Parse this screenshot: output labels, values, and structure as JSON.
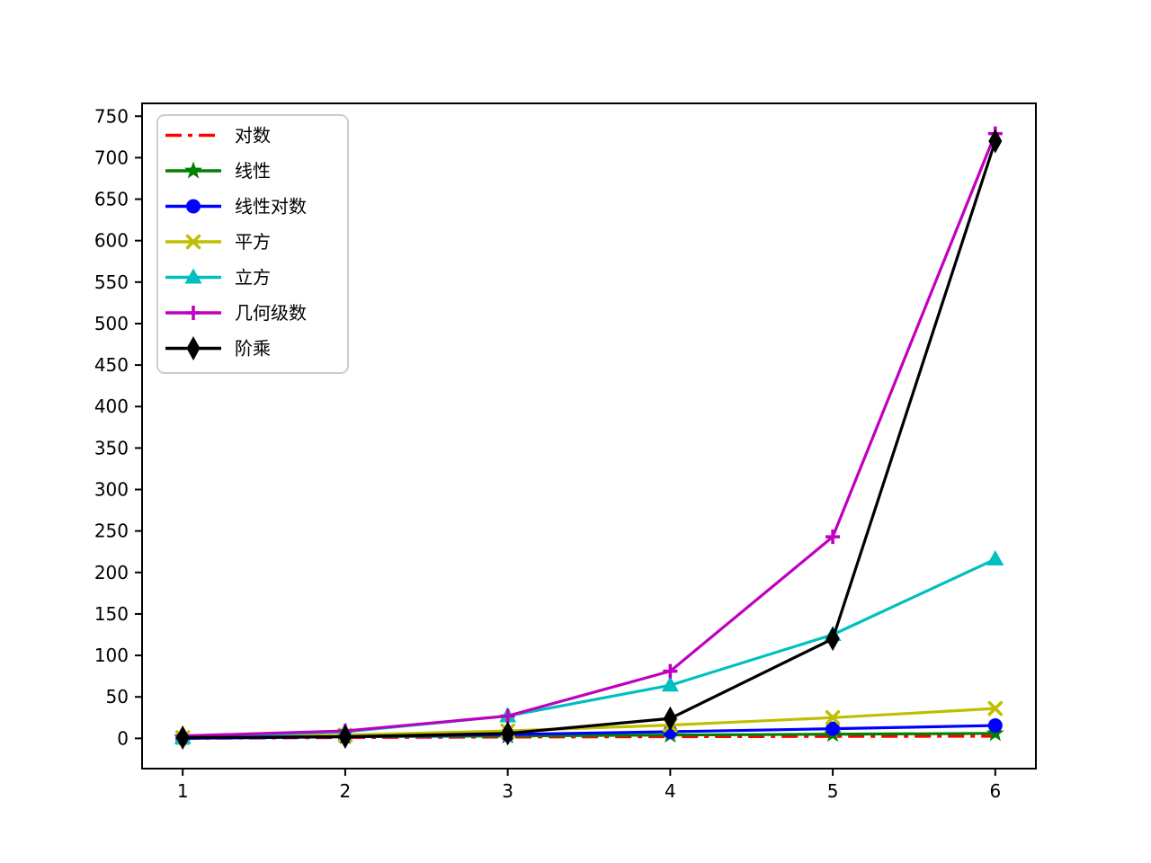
{
  "figure": {
    "background": "#ffffff",
    "title": "",
    "xlabel": "",
    "ylabel": ""
  },
  "chart_data": {
    "type": "line",
    "x": [
      1,
      2,
      3,
      4,
      5,
      6
    ],
    "series": [
      {
        "id": "log",
        "name": "对数",
        "color": "#ff0000",
        "linestyle": "dashdot",
        "marker": "none",
        "values": [
          0,
          1,
          1.585,
          2,
          2.322,
          2.585
        ]
      },
      {
        "id": "linear",
        "name": "线性",
        "color": "#008000",
        "linestyle": "solid",
        "marker": "star",
        "values": [
          1,
          2,
          3,
          4,
          5,
          6
        ]
      },
      {
        "id": "linearithmic",
        "name": "线性对数",
        "color": "#0000ff",
        "linestyle": "solid",
        "marker": "circle",
        "values": [
          0,
          2,
          4.755,
          8,
          11.61,
          15.51
        ]
      },
      {
        "id": "square",
        "name": "平方",
        "color": "#bfbf00",
        "linestyle": "solid",
        "marker": "x",
        "values": [
          1,
          4,
          9,
          16,
          25,
          36
        ]
      },
      {
        "id": "cube",
        "name": "立方",
        "color": "#00bfbf",
        "linestyle": "solid",
        "marker": "triangle-up",
        "values": [
          1,
          8,
          27,
          64,
          125,
          216
        ]
      },
      {
        "id": "geometric",
        "name": "几何级数",
        "color": "#bf00bf",
        "linestyle": "solid",
        "marker": "plus",
        "values": [
          3,
          9,
          27,
          81,
          243,
          729
        ]
      },
      {
        "id": "factorial",
        "name": "阶乘",
        "color": "#000000",
        "linestyle": "solid",
        "marker": "thin-diamond",
        "values": [
          1,
          2,
          6,
          24,
          120,
          720
        ]
      }
    ],
    "xticks": [
      "1",
      "2",
      "3",
      "4",
      "5",
      "6"
    ],
    "xtick_values": [
      1,
      2,
      3,
      4,
      5,
      6
    ],
    "yticks": [
      "0",
      "50",
      "100",
      "150",
      "200",
      "250",
      "300",
      "350",
      "400",
      "450",
      "500",
      "550",
      "600",
      "650",
      "700",
      "750"
    ],
    "ytick_values": [
      0,
      50,
      100,
      150,
      200,
      250,
      300,
      350,
      400,
      450,
      500,
      550,
      600,
      650,
      700,
      750
    ],
    "xlim": [
      0.75,
      6.25
    ],
    "ylim": [
      -36.45,
      765.45
    ],
    "grid": false,
    "legend_position": "upper-left",
    "axis_color": "#000000",
    "legend_border_color": "#cccccc",
    "legend_background": "rgba(255,255,255,0.85)"
  }
}
